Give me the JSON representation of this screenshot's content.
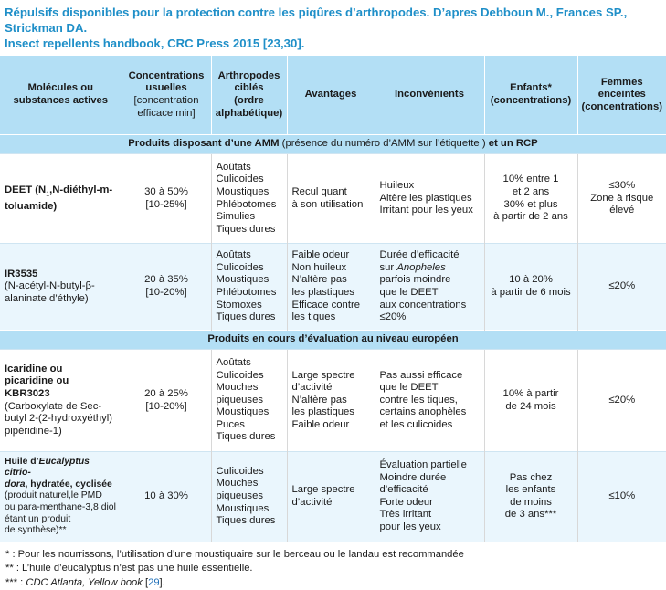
{
  "title": {
    "line1": "Répulsifs disponibles pour la protection contre les piqûres d’arthropodes. D’apres Debboun M., Frances SP., Strickman DA.",
    "line2_prefix": "Insect repellents handbook, CRC Press 2015 [",
    "line2_ref": "23,30",
    "line2_suffix": "]."
  },
  "headers": {
    "molecules": "Molécules ou substances actives",
    "conc_main": "Concentrations usuelles",
    "conc_sub": "[concentration efficace min]",
    "arthro_main": "Arthropodes ciblés",
    "arthro_sub": "(ordre alphabétique)",
    "avantages": "Avantages",
    "inconvenients": "Inconvénients",
    "enfants": "Enfants* (concentrations)",
    "femmes": "Femmes enceintes (concentrations)"
  },
  "sections": {
    "amm_bold1": "Produits disposant d’une AMM",
    "amm_normal": " (présence du numéro d’AMM sur l’étiquette ) ",
    "amm_bold2": "et un RCP",
    "eval": "Produits en cours d’évaluation au niveau européen"
  },
  "rows": {
    "deet": {
      "name_a": "DEET (N",
      "name_sub": "1",
      "name_b": ",N-diéthyl-m-toluamide)",
      "conc": [
        "30 à 50%",
        "[10-25%]"
      ],
      "arthro": [
        "Aoûtats",
        "Culicoides",
        "Moustiques",
        "Phlébotomes",
        "Simulies",
        "Tiques dures"
      ],
      "avantages": [
        "Recul quant",
        "à son utilisation"
      ],
      "inconv": [
        "Huileux",
        "Altère les plastiques",
        "Irritant pour les yeux"
      ],
      "enfants": [
        "10% entre 1",
        "et 2 ans",
        "30% et plus",
        "à partir de 2 ans"
      ],
      "femmes": [
        "≤30%",
        "Zone à risque",
        "élevé"
      ]
    },
    "ir3535": {
      "name": "IR3535",
      "name_detail": [
        "(N-acétyl-N-butyl-β-",
        "alaninate d’éthyle)"
      ],
      "conc": [
        "20 à 35%",
        "[10-20%]"
      ],
      "arthro": [
        "Aoûtats",
        "Culicoides",
        "Moustiques",
        "Phlébotomes",
        "Stomoxes",
        "Tiques dures"
      ],
      "avantages": [
        "Faible odeur",
        "Non huileux",
        "N’altère pas",
        "les plastiques",
        "Efficace contre",
        "les tiques"
      ],
      "inconv_1": "Durée d’efficacité",
      "inconv_2a": "sur ",
      "inconv_2b": "Anopheles",
      "inconv_rest": [
        "parfois moindre",
        "que le DEET",
        "aux concentrations",
        "≤20%"
      ],
      "enfants": [
        "10 à 20%",
        "à partir de 6 mois"
      ],
      "femmes": [
        "≤20%"
      ]
    },
    "icaridine": {
      "name": [
        "Icaridine ou",
        "picaridine ou KBR3023"
      ],
      "name_detail": [
        "(Carboxylate de Sec-",
        "butyl 2-(2-hydroxyéthyl)",
        "pipéridine-1)"
      ],
      "conc": [
        "20 à 25%",
        "[10-20%]"
      ],
      "arthro": [
        "Aoûtats",
        "Culicoides",
        "Mouches",
        "piqueuses",
        "Moustiques",
        "Puces",
        "Tiques dures"
      ],
      "avantages": [
        "Large spectre",
        "d’activité",
        "N’altère pas",
        "les plastiques",
        "Faible odeur"
      ],
      "inconv": [
        "Pas aussi efficace",
        "que le DEET",
        "contre les tiques,",
        "certains anophèles",
        "et les culicoides"
      ],
      "enfants": [
        "10% à partir",
        "de 24 mois"
      ],
      "femmes": [
        "≤20%"
      ]
    },
    "eucalyptus": {
      "name_a": "Huile d’",
      "name_b": "Eucalyptus citrio-",
      "name_c": "dora",
      "name_d": ", hydratée, cyclisée",
      "name_detail": [
        "(produit naturel,le PMD",
        "ou para-menthane-3,8 diol",
        "étant un produit",
        "de synthèse)**"
      ],
      "conc": [
        "10 à 30%"
      ],
      "arthro": [
        "Culicoides",
        "Mouches",
        "piqueuses",
        "Moustiques",
        "Tiques dures"
      ],
      "avantages": [
        "Large spectre",
        "d’activité"
      ],
      "inconv": [
        "Évaluation partielle",
        "Moindre durée",
        "d’efficacité",
        "Forte odeur",
        "Très irritant",
        "pour les yeux"
      ],
      "enfants": [
        "Pas chez",
        "les enfants",
        "de moins",
        "de 3 ans***"
      ],
      "femmes": [
        "≤10%"
      ]
    }
  },
  "notes": {
    "n1": "* : Pour les nourrissons, l’utilisation d’une moustiquaire sur le berceau ou le landau est recommandée",
    "n2": "** : L’huile d’eucalyptus n’est pas une huile essentielle.",
    "n3_prefix": "*** : ",
    "n3_italic": "CDC Atlanta, Yellow book",
    "n3_space": " [",
    "n3_ref": "29",
    "n3_suffix": "]."
  }
}
